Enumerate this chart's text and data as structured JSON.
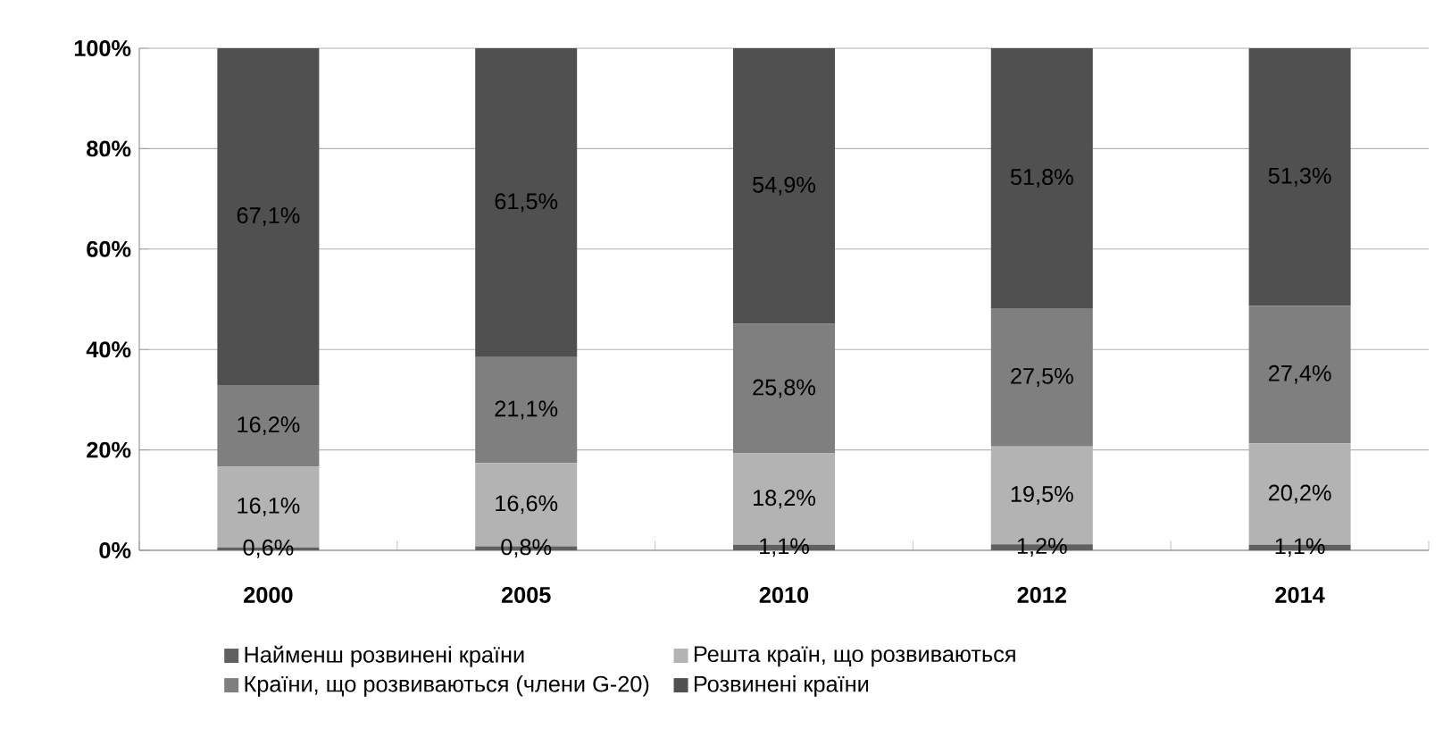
{
  "chart_data": {
    "type": "bar",
    "stacked": true,
    "categories": [
      "2000",
      "2005",
      "2010",
      "2012",
      "2014"
    ],
    "series": [
      {
        "name": "Найменш розвинені країни",
        "color": "#606060",
        "values": [
          0.6,
          0.8,
          1.1,
          1.2,
          1.1
        ],
        "value_labels": [
          "0,6%",
          "0,8%",
          "1,1%",
          "1,2%",
          "1,1%"
        ]
      },
      {
        "name": "Решта країн, що розвиваються",
        "color": "#b3b3b3",
        "values": [
          16.1,
          16.6,
          18.2,
          19.5,
          20.2
        ],
        "value_labels": [
          "16,1%",
          "16,6%",
          "18,2%",
          "19,5%",
          "20,2%"
        ]
      },
      {
        "name": "Країни, що розвиваються (члени G-20)",
        "color": "#7f7f7f",
        "values": [
          16.2,
          21.1,
          25.8,
          27.5,
          27.4
        ],
        "value_labels": [
          "16,2%",
          "21,1%",
          "25,8%",
          "27,5%",
          "27,4%"
        ]
      },
      {
        "name": "Розвинені країни",
        "color": "#505050",
        "values": [
          67.1,
          61.5,
          54.9,
          51.8,
          51.3
        ],
        "value_labels": [
          "67,1%",
          "61,5%",
          "54,9%",
          "51,8%",
          "51,3%"
        ]
      }
    ],
    "ylim": [
      0,
      100
    ],
    "yticks": [
      {
        "value": 0,
        "label": "0%"
      },
      {
        "value": 20,
        "label": "20%"
      },
      {
        "value": 40,
        "label": "40%"
      },
      {
        "value": 60,
        "label": "60%"
      },
      {
        "value": 80,
        "label": "80%"
      },
      {
        "value": 100,
        "label": "100%"
      }
    ],
    "grid": "y",
    "legend": "bottom"
  }
}
